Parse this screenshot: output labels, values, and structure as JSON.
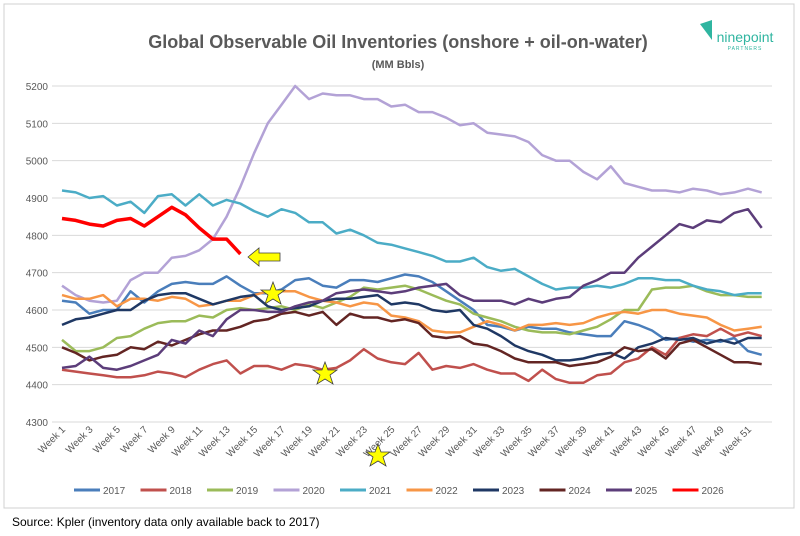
{
  "chart_data": {
    "type": "line",
    "title": "Global Observable Oil Inventories (onshore + oil-on-water)",
    "subtitle": "(MM Bbls)",
    "logo": "ninepoint",
    "logo_sub": "PARTNERS",
    "source": "Source: Kpler (inventory data only available back to 2017)",
    "categories": [
      "Week 1",
      null,
      "Week 3",
      null,
      "Week 5",
      null,
      "Week 7",
      null,
      "Week 9",
      null,
      "Week 11",
      null,
      "Week 13",
      null,
      "Week 15",
      null,
      "Week 17",
      null,
      "Week 19",
      null,
      "Week 21",
      null,
      "Week 23",
      null,
      "Week 25",
      null,
      "Week 27",
      null,
      "Week 29",
      null,
      "Week 31",
      null,
      "Week 33",
      null,
      "Week 35",
      null,
      "Week 37",
      null,
      "Week 39",
      null,
      "Week 41",
      null,
      "Week 43",
      null,
      "Week 45",
      null,
      "Week 47",
      null,
      "Week 49",
      null,
      "Week 51",
      null
    ],
    "ylim": [
      4300,
      5200
    ],
    "yticks": [
      4300,
      4400,
      4500,
      4600,
      4700,
      4800,
      4900,
      5000,
      5100,
      5200
    ],
    "grid": true,
    "series": [
      {
        "name": "2017",
        "color": "#4a7ebb",
        "values": [
          4625,
          4620,
          4590,
          4600,
          4600,
          4650,
          4620,
          4650,
          4670,
          4675,
          4670,
          4670,
          4690,
          4665,
          4645,
          4645,
          4655,
          4680,
          4685,
          4665,
          4660,
          4680,
          4680,
          4675,
          4685,
          4695,
          4690,
          4675,
          4650,
          4625,
          4600,
          4560,
          4555,
          4545,
          4555,
          4550,
          4550,
          4540,
          4535,
          4530,
          4530,
          4570,
          4560,
          4545,
          4520,
          4525,
          4515,
          4520,
          4515,
          4525,
          4490,
          4480
        ]
      },
      {
        "name": "2018",
        "color": "#c0504d",
        "values": [
          4440,
          4435,
          4430,
          4425,
          4420,
          4420,
          4425,
          4435,
          4430,
          4420,
          4440,
          4455,
          4465,
          4430,
          4450,
          4450,
          4440,
          4455,
          4450,
          4440,
          4445,
          4465,
          4495,
          4470,
          4460,
          4455,
          4485,
          4440,
          4450,
          4445,
          4455,
          4440,
          4430,
          4430,
          4410,
          4440,
          4415,
          4405,
          4405,
          4425,
          4430,
          4460,
          4470,
          4500,
          4480,
          4525,
          4535,
          4530,
          4550,
          4530,
          4540,
          4530
        ]
      },
      {
        "name": "2019",
        "color": "#9bbb59",
        "values": [
          4520,
          4490,
          4490,
          4500,
          4525,
          4530,
          4550,
          4565,
          4570,
          4570,
          4585,
          4580,
          4600,
          4605,
          4600,
          4605,
          4610,
          4600,
          4615,
          4605,
          4620,
          4635,
          4660,
          4655,
          4660,
          4665,
          4655,
          4640,
          4625,
          4615,
          4590,
          4580,
          4570,
          4555,
          4545,
          4540,
          4540,
          4535,
          4545,
          4555,
          4575,
          4600,
          4600,
          4655,
          4660,
          4660,
          4665,
          4650,
          4640,
          4640,
          4635,
          4635
        ]
      },
      {
        "name": "2020",
        "color": "#b3a2d6",
        "values": [
          4665,
          4640,
          4625,
          4620,
          4625,
          4680,
          4700,
          4700,
          4740,
          4745,
          4760,
          4790,
          4850,
          4930,
          5020,
          5100,
          5150,
          5200,
          5165,
          5180,
          5175,
          5175,
          5165,
          5165,
          5145,
          5150,
          5130,
          5130,
          5115,
          5095,
          5100,
          5075,
          5070,
          5065,
          5050,
          5015,
          5000,
          5000,
          4970,
          4950,
          4985,
          4940,
          4930,
          4920,
          4920,
          4915,
          4925,
          4920,
          4910,
          4915,
          4925,
          4915
        ]
      },
      {
        "name": "2021",
        "color": "#4bacc6",
        "values": [
          4920,
          4915,
          4900,
          4905,
          4880,
          4890,
          4860,
          4905,
          4910,
          4880,
          4910,
          4880,
          4895,
          4885,
          4865,
          4850,
          4870,
          4860,
          4835,
          4835,
          4805,
          4815,
          4800,
          4780,
          4775,
          4765,
          4755,
          4745,
          4730,
          4730,
          4740,
          4715,
          4705,
          4710,
          4690,
          4670,
          4655,
          4660,
          4660,
          4665,
          4660,
          4670,
          4685,
          4685,
          4680,
          4680,
          4665,
          4655,
          4650,
          4640,
          4645,
          4645
        ]
      },
      {
        "name": "2022",
        "color": "#f79646",
        "values": [
          4640,
          4630,
          4630,
          4640,
          4610,
          4630,
          4630,
          4625,
          4635,
          4630,
          4610,
          4615,
          4625,
          4625,
          4640,
          4650,
          4650,
          4650,
          4635,
          4625,
          4620,
          4610,
          4620,
          4615,
          4585,
          4580,
          4570,
          4545,
          4540,
          4540,
          4555,
          4570,
          4560,
          4545,
          4560,
          4560,
          4565,
          4560,
          4565,
          4580,
          4590,
          4595,
          4590,
          4600,
          4600,
          4590,
          4585,
          4580,
          4560,
          4545,
          4550,
          4555
        ]
      },
      {
        "name": "2023",
        "color": "#1f3864",
        "values": [
          4560,
          4575,
          4580,
          4590,
          4600,
          4600,
          4625,
          4640,
          4645,
          4645,
          4630,
          4615,
          4625,
          4635,
          4640,
          4610,
          4600,
          4605,
          4610,
          4625,
          4630,
          4630,
          4635,
          4640,
          4615,
          4620,
          4615,
          4600,
          4595,
          4600,
          4560,
          4550,
          4530,
          4505,
          4490,
          4480,
          4465,
          4465,
          4470,
          4480,
          4485,
          4470,
          4500,
          4510,
          4525,
          4520,
          4525,
          4510,
          4520,
          4510,
          4525,
          4525
        ]
      },
      {
        "name": "2024",
        "color": "#632523",
        "values": [
          4500,
          4485,
          4465,
          4475,
          4480,
          4500,
          4495,
          4515,
          4505,
          4520,
          4535,
          4545,
          4545,
          4555,
          4570,
          4575,
          4590,
          4595,
          4585,
          4595,
          4560,
          4590,
          4580,
          4580,
          4570,
          4575,
          4565,
          4530,
          4525,
          4530,
          4510,
          4505,
          4490,
          4470,
          4460,
          4460,
          4460,
          4450,
          4455,
          4460,
          4475,
          4500,
          4490,
          4495,
          4470,
          4510,
          4520,
          4500,
          4480,
          4460,
          4460,
          4455
        ]
      },
      {
        "name": "2025",
        "color": "#5c3d7a",
        "values": [
          4445,
          4450,
          4475,
          4445,
          4440,
          4450,
          4465,
          4480,
          4520,
          4510,
          4545,
          4530,
          4575,
          4600,
          4600,
          4595,
          4595,
          4610,
          4620,
          4625,
          4645,
          4650,
          4655,
          4650,
          4645,
          4650,
          4660,
          4665,
          4670,
          4640,
          4625,
          4625,
          4625,
          4615,
          4630,
          4620,
          4630,
          4635,
          4665,
          4680,
          4700,
          4700,
          4740,
          4770,
          4800,
          4830,
          4820,
          4840,
          4835,
          4860,
          4870,
          4820
        ]
      },
      {
        "name": "2026",
        "color": "#ff0000",
        "values": [
          4845,
          4840,
          4830,
          4825,
          4840,
          4845,
          4825,
          4850,
          4875,
          4855,
          4820,
          4790,
          4790,
          4750,
          null,
          null,
          null,
          null,
          null,
          null,
          null,
          null,
          null,
          null,
          null,
          null,
          null,
          null,
          null,
          null,
          null,
          null,
          null,
          null,
          null,
          null,
          null,
          null,
          null,
          null,
          null,
          null,
          null,
          null,
          null,
          null,
          null,
          null,
          null,
          null,
          null,
          null
        ]
      }
    ]
  }
}
